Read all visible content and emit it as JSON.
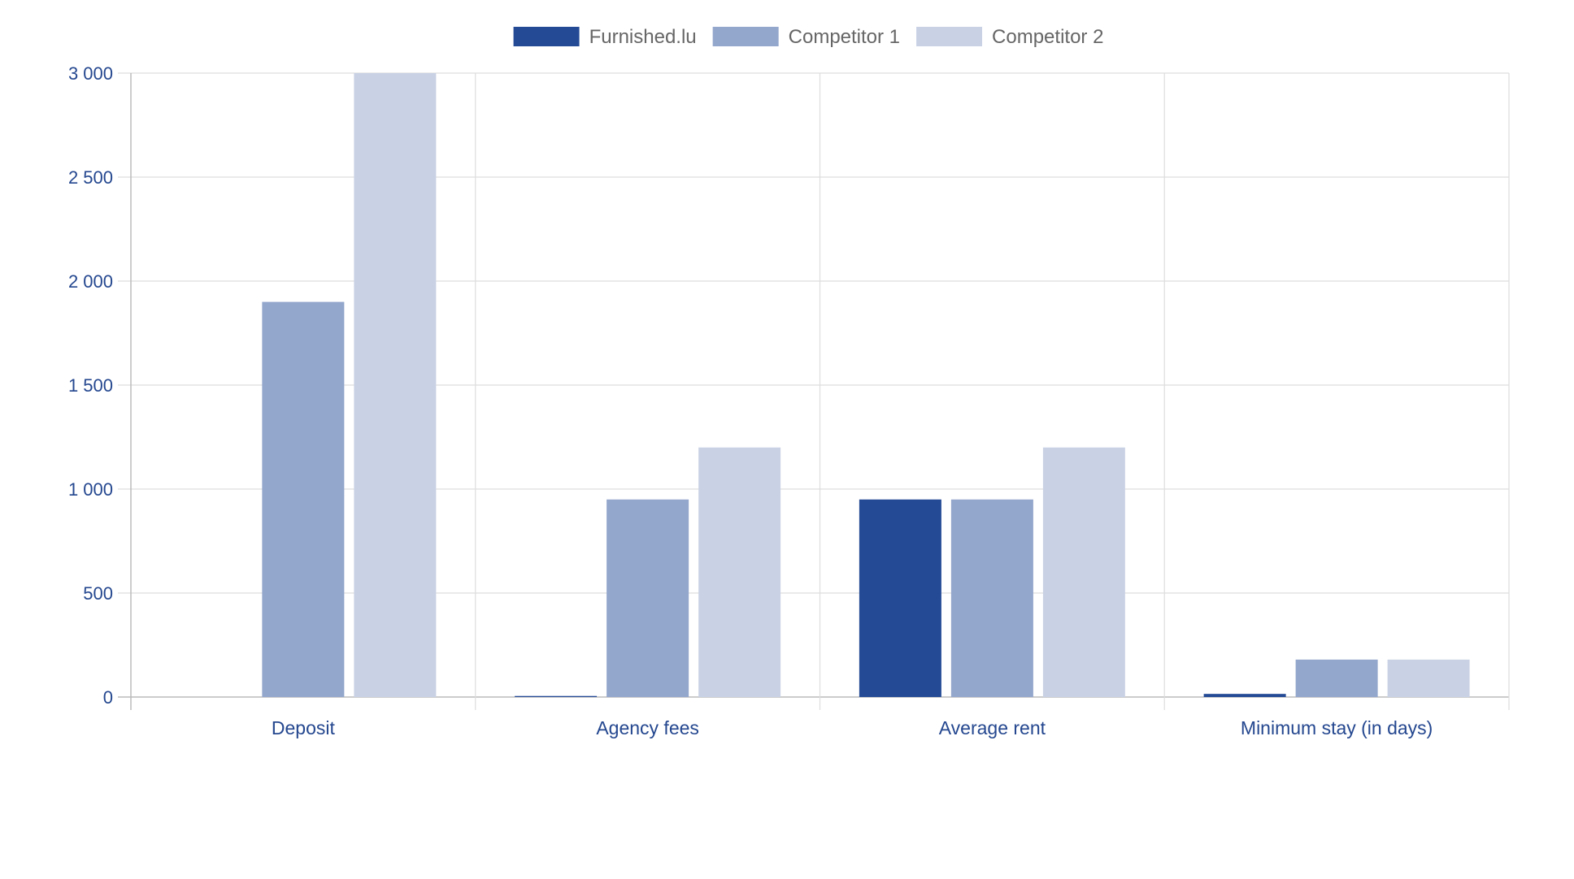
{
  "chart_data": {
    "type": "bar",
    "categories": [
      "Deposit",
      "Agency fees",
      "Average rent",
      "Minimum stay (in days)"
    ],
    "series": [
      {
        "name": "Furnished.lu",
        "color": "#244a95",
        "values": [
          0,
          5,
          950,
          15
        ]
      },
      {
        "name": "Competitor 1",
        "color": "#93a6cc",
        "values": [
          1900,
          950,
          950,
          180
        ]
      },
      {
        "name": "Competitor 2",
        "color": "#c9d2e5",
        "values": [
          3000,
          1200,
          1200,
          180
        ]
      }
    ],
    "ylim": [
      0,
      3000
    ],
    "yticks": [
      0,
      500,
      1000,
      1500,
      2000,
      2500,
      3000
    ],
    "ytick_labels": [
      "0",
      "500",
      "1 000",
      "1 500",
      "2 000",
      "2 500",
      "3 000"
    ],
    "grid": true,
    "legend_position": "top-center",
    "title": "",
    "xlabel": "",
    "ylabel": ""
  }
}
